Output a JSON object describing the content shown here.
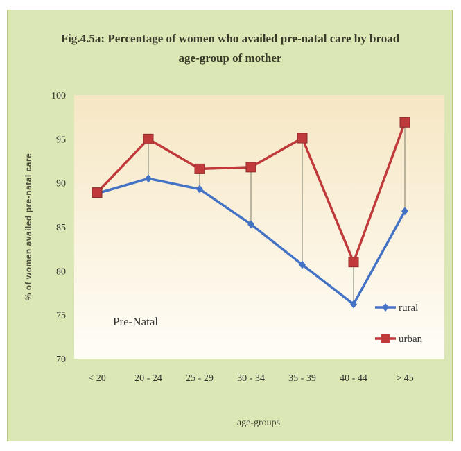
{
  "chart_data": {
    "type": "line",
    "title_lines": [
      "Fig.4.5a: Percentage of women who availed pre-natal care by broad",
      "age-group of mother"
    ],
    "xlabel": "age-groups",
    "ylabel": "% of women availed pre-natal care",
    "ylim": [
      70,
      100
    ],
    "yticks": [
      70,
      75,
      80,
      85,
      90,
      95,
      100
    ],
    "categories": [
      "< 20",
      "20 - 24",
      "25 - 29",
      "30 - 34",
      "35 - 39",
      "40 - 44",
      "> 45"
    ],
    "series": [
      {
        "name": "rural",
        "color": "#4472c4",
        "marker": "diamond",
        "values": [
          88.8,
          90.5,
          89.3,
          85.3,
          80.7,
          76.2,
          86.8
        ]
      },
      {
        "name": "urban",
        "color": "#c0393b",
        "marker": "square",
        "values": [
          88.9,
          95.0,
          91.6,
          91.8,
          95.1,
          81.0,
          96.9
        ]
      }
    ],
    "annotation": "Pre-Natal",
    "drop_lines": true,
    "grid": false,
    "legend_position": "right"
  }
}
